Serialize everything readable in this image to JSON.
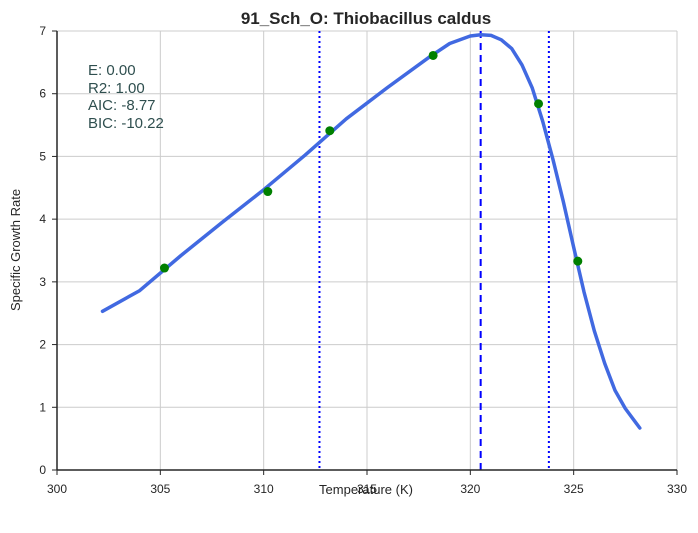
{
  "chart_data": {
    "type": "line",
    "title": "91_Sch_O: Thiobacillus caldus",
    "xlabel": "Temperature (K)",
    "ylabel": "Specific Growth Rate",
    "xlim": [
      300,
      330
    ],
    "ylim": [
      0,
      7
    ],
    "xticks": [
      300,
      305,
      310,
      315,
      320,
      325,
      330
    ],
    "yticks": [
      0,
      1,
      2,
      3,
      4,
      5,
      6,
      7
    ],
    "grid": true,
    "annotations": [
      "E:  0.00",
      "R2:  1.00",
      "AIC: -8.77",
      "BIC: -10.22"
    ],
    "fit_curve": {
      "color": "#4169e1",
      "x": [
        302.2,
        304.0,
        306.0,
        308.0,
        310.0,
        312.0,
        314.0,
        316.0,
        318.0,
        319.0,
        320.0,
        320.5,
        321.0,
        321.5,
        322.0,
        322.5,
        323.0,
        323.5,
        324.0,
        324.5,
        325.0,
        325.5,
        326.0,
        326.5,
        327.0,
        327.5,
        328.2
      ],
      "y": [
        2.53,
        2.86,
        3.42,
        3.95,
        4.47,
        5.02,
        5.6,
        6.1,
        6.58,
        6.8,
        6.92,
        6.94,
        6.93,
        6.86,
        6.72,
        6.46,
        6.09,
        5.56,
        4.95,
        4.28,
        3.55,
        2.84,
        2.22,
        1.7,
        1.27,
        0.98,
        0.67
      ]
    },
    "points": {
      "color": "#008000",
      "x": [
        305.2,
        310.2,
        313.2,
        318.2,
        323.3,
        325.2
      ],
      "y": [
        3.22,
        4.44,
        5.41,
        6.61,
        5.84,
        3.33
      ]
    },
    "vlines": [
      {
        "x": 312.7,
        "style": "dotted",
        "color": "#0000ff"
      },
      {
        "x": 320.5,
        "style": "dashed",
        "color": "#0000ff"
      },
      {
        "x": 323.8,
        "style": "dotted",
        "color": "#0000ff"
      }
    ]
  }
}
